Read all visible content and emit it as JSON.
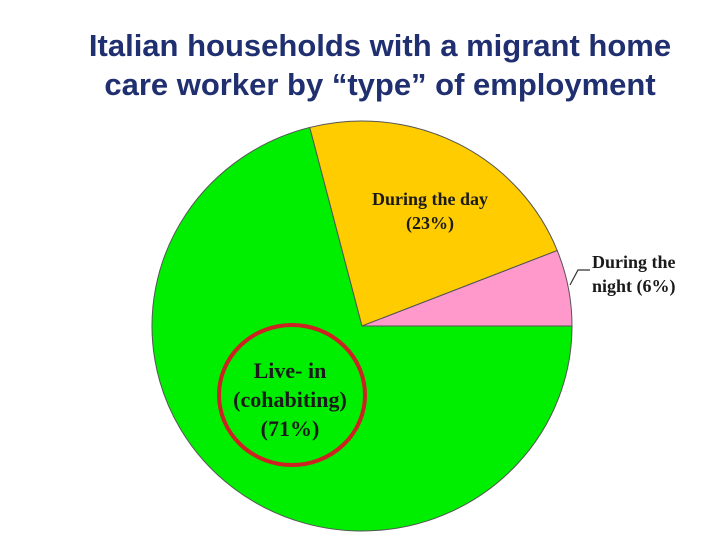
{
  "title": {
    "line1": "Italian households with a migrant home",
    "line2": "care worker by “type” of employment"
  },
  "chart_data": {
    "type": "pie",
    "title": "Italian households with a migrant home care worker by “type” of employment",
    "slices": [
      {
        "label_lines": [
          "Live- in",
          "(cohabiting)",
          "(71%)"
        ],
        "value": 71,
        "color": "#00ee00"
      },
      {
        "label_lines": [
          "During the day",
          "(23%)"
        ],
        "value": 23,
        "color": "#ffcc00"
      },
      {
        "label_lines": [
          "During the",
          "night (6%)"
        ],
        "value": 6,
        "color": "#ff99cc"
      }
    ],
    "highlight": {
      "slice": "Live- in",
      "shape": "ellipse",
      "color": "#cc2222"
    }
  }
}
